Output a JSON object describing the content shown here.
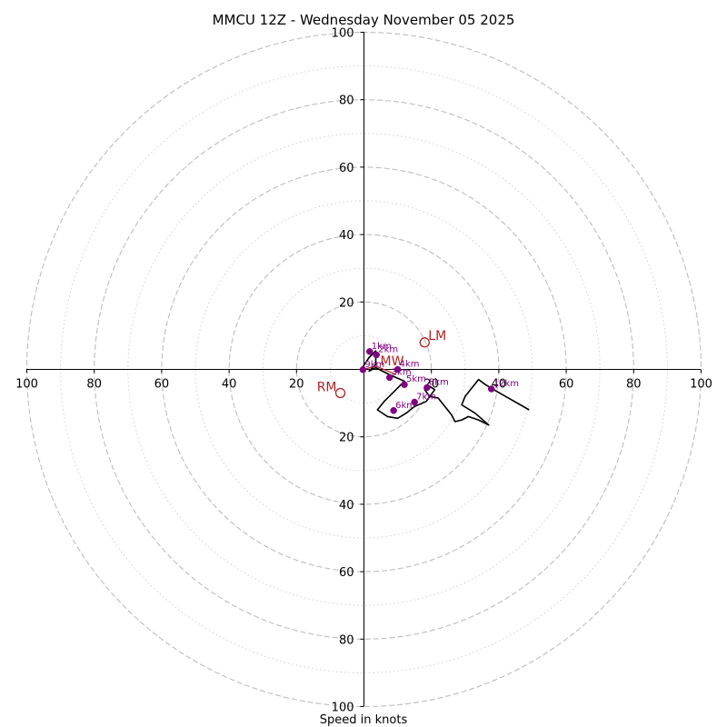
{
  "chart_data": {
    "type": "hodograph",
    "title": "MMCU 12Z - Wednesday November 05 2025",
    "xlabel": "Speed in knots",
    "units": "knots",
    "range": 100,
    "major_rings": [
      20,
      40,
      60,
      80,
      100
    ],
    "minor_rings": [
      10,
      30,
      50,
      70,
      90
    ],
    "x_tick_labels": [
      "100",
      "80",
      "60",
      "40",
      "20",
      "20",
      "40",
      "60",
      "80",
      "100"
    ],
    "y_tick_labels": [
      "100",
      "80",
      "60",
      "40",
      "20",
      "20",
      "40",
      "60",
      "80",
      "100"
    ],
    "x_tick_values": [
      -100,
      -80,
      -60,
      -40,
      -20,
      20,
      40,
      60,
      80,
      100
    ],
    "y_tick_values": [
      100,
      80,
      60,
      40,
      20,
      -20,
      -40,
      -60,
      -80,
      -100
    ],
    "colors": {
      "grid": "#bdbdbd",
      "trace": "#000000",
      "markers": "#800080",
      "storm_motion": "#b22222"
    },
    "trace": [
      [
        -0.5,
        0.5
      ],
      [
        1.5,
        3.5
      ],
      [
        3.5,
        5.5
      ],
      [
        3.5,
        1.5
      ],
      [
        1.5,
        -0.5
      ],
      [
        3.5,
        0.5
      ],
      [
        7.5,
        -1.5
      ],
      [
        12.0,
        -3.5
      ],
      [
        10.0,
        -5.5
      ],
      [
        6.0,
        -9.5
      ],
      [
        4.0,
        -12.0
      ],
      [
        7.0,
        -14.0
      ],
      [
        10.0,
        -14.5
      ],
      [
        12.5,
        -13.0
      ],
      [
        15.0,
        -11.0
      ],
      [
        18.5,
        -9.5
      ],
      [
        21.0,
        -6.0
      ],
      [
        19.5,
        -5.0
      ],
      [
        18.0,
        -6.0
      ],
      [
        19.5,
        -8.0
      ],
      [
        22.0,
        -8.5
      ],
      [
        24.0,
        -11.0
      ],
      [
        26.0,
        -13.5
      ],
      [
        27.0,
        -15.5
      ],
      [
        29.0,
        -15.0
      ],
      [
        31.0,
        -14.0
      ],
      [
        34.0,
        -15.0
      ],
      [
        37.0,
        -16.5
      ],
      [
        33.0,
        -13.0
      ],
      [
        29.0,
        -10.5
      ],
      [
        30.0,
        -8.0
      ],
      [
        34.0,
        -3.0
      ],
      [
        36.0,
        -4.5
      ],
      [
        38.5,
        -6.0
      ],
      [
        42.0,
        -8.0
      ],
      [
        49.0,
        -12.0
      ]
    ],
    "height_markers": [
      {
        "label": "1km",
        "u": 1.7,
        "v": 5.3
      },
      {
        "label": "2km",
        "u": 3.7,
        "v": 4.3
      },
      {
        "label": "3km",
        "u": 7.6,
        "v": -2.4
      },
      {
        "label": "4km",
        "u": 10.0,
        "v": 0.0
      },
      {
        "label": "5km",
        "u": 12.0,
        "v": -4.5
      },
      {
        "label": "6km",
        "u": 8.8,
        "v": -12.2
      },
      {
        "label": "7km",
        "u": 15.0,
        "v": -9.7
      },
      {
        "label": "8km",
        "u": 18.7,
        "v": -5.4
      },
      {
        "label": "9km",
        "u": -0.3,
        "v": -0.1
      },
      {
        "label": "12km",
        "u": 37.8,
        "v": -5.8
      }
    ],
    "storm_motion": [
      {
        "label": "LM",
        "u": 18.0,
        "v": 8.0
      },
      {
        "label": "RM",
        "u": -7.0,
        "v": -7.0
      },
      {
        "label": "MW",
        "u": 3.5,
        "v": 1.0
      }
    ]
  }
}
